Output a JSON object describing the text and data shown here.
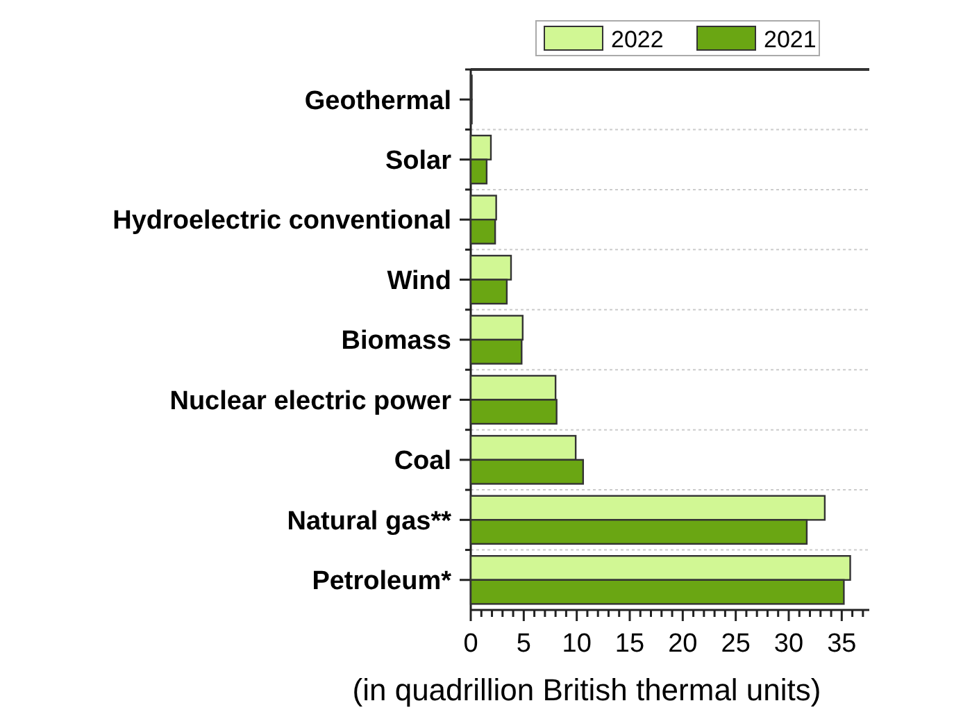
{
  "chart_data": {
    "type": "bar",
    "orientation": "horizontal",
    "xlabel": "(in quadrillion British thermal units)",
    "categories": [
      "Geothermal",
      "Solar",
      "Hydroelectric conventional",
      "Wind",
      "Biomass",
      "Nuclear electric power",
      "Coal",
      "Natural gas**",
      "Petroleum*"
    ],
    "series": [
      {
        "name": "2022",
        "color": "#d1f794",
        "values": [
          0.1,
          1.9,
          2.4,
          3.8,
          4.9,
          8.0,
          9.9,
          33.4,
          35.8
        ]
      },
      {
        "name": "2021",
        "color": "#6aa613",
        "values": [
          0.1,
          1.5,
          2.3,
          3.4,
          4.8,
          8.1,
          10.6,
          31.7,
          35.2
        ]
      }
    ],
    "xlim": [
      0,
      37.6
    ],
    "xticks": [
      0,
      {
        "value": 1,
        "label": null
      },
      {
        "value": 2,
        "label": null
      },
      {
        "value": 3,
        "label": null
      },
      {
        "value": 4,
        "label": null
      },
      5,
      {
        "value": 6,
        "label": null
      },
      {
        "value": 7,
        "label": null
      },
      {
        "value": 8,
        "label": null
      },
      {
        "value": 9,
        "label": null
      },
      10,
      {
        "value": 11,
        "label": null
      },
      {
        "value": 12,
        "label": null
      },
      {
        "value": 13,
        "label": null
      },
      {
        "value": 14,
        "label": null
      },
      15,
      {
        "value": 16,
        "label": null
      },
      {
        "value": 17,
        "label": null
      },
      {
        "value": 18,
        "label": null
      },
      {
        "value": 19,
        "label": null
      },
      20,
      {
        "value": 21,
        "label": null
      },
      {
        "value": 22,
        "label": null
      },
      {
        "value": 23,
        "label": null
      },
      {
        "value": 24,
        "label": null
      },
      25,
      {
        "value": 26,
        "label": null
      },
      {
        "value": 27,
        "label": null
      },
      {
        "value": 28,
        "label": null
      },
      {
        "value": 29,
        "label": null
      },
      30,
      {
        "value": 31,
        "label": null
      },
      {
        "value": 32,
        "label": null
      },
      {
        "value": 33,
        "label": null
      },
      {
        "value": 34,
        "label": null
      },
      35,
      {
        "value": 36,
        "label": null
      },
      {
        "value": 37,
        "label": null
      }
    ],
    "grid": "y",
    "legend": "top right"
  }
}
